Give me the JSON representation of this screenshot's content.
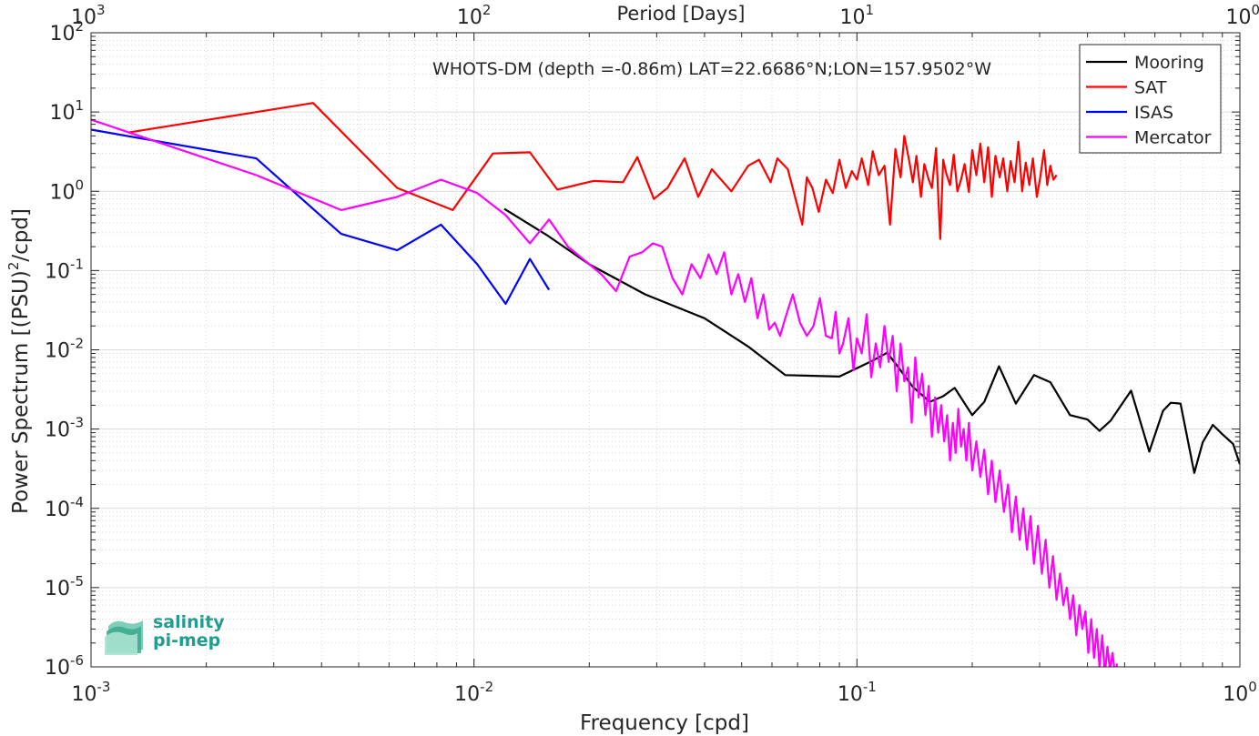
{
  "chart_data": {
    "type": "line",
    "title": "WHOTS-DM (depth =-0.86m) LAT=22.6686°N;LON=157.9502°W",
    "xlabel": "Frequency [cpd]",
    "ylabel": "Power Spectrum [(PSU)²/cpd]",
    "top_xlabel": "Period [Days]",
    "xscale": "log",
    "yscale": "log",
    "xlim": [
      0.001,
      1
    ],
    "ylim": [
      1e-06,
      100
    ],
    "grid": true,
    "legend_position": "top-right",
    "x_ticks": [
      {
        "base": "10",
        "exp": "-3",
        "value": 0.001
      },
      {
        "base": "10",
        "exp": "-2",
        "value": 0.01
      },
      {
        "base": "10",
        "exp": "-1",
        "value": 0.1
      },
      {
        "base": "10",
        "exp": "0",
        "value": 1
      }
    ],
    "y_ticks": [
      {
        "base": "10",
        "exp": "-6",
        "value": 1e-06
      },
      {
        "base": "10",
        "exp": "-5",
        "value": 1e-05
      },
      {
        "base": "10",
        "exp": "-4",
        "value": 0.0001
      },
      {
        "base": "10",
        "exp": "-3",
        "value": 0.001
      },
      {
        "base": "10",
        "exp": "-2",
        "value": 0.01
      },
      {
        "base": "10",
        "exp": "-1",
        "value": 0.1
      },
      {
        "base": "10",
        "exp": "0",
        "value": 1
      },
      {
        "base": "10",
        "exp": "1",
        "value": 10
      },
      {
        "base": "10",
        "exp": "2",
        "value": 100
      }
    ],
    "top_ticks": [
      {
        "base": "10",
        "exp": "3",
        "period": 1000
      },
      {
        "base": "10",
        "exp": "2",
        "period": 100
      },
      {
        "base": "10",
        "exp": "1",
        "period": 10
      },
      {
        "base": "10",
        "exp": "0",
        "period": 1
      }
    ],
    "series": [
      {
        "name": "Mooring",
        "color": "#000000",
        "x": [
          0.012,
          0.0155,
          0.02,
          0.028,
          0.04,
          0.052,
          0.065,
          0.09,
          0.11,
          0.12,
          0.13,
          0.14,
          0.155,
          0.168,
          0.18,
          0.2,
          0.215,
          0.235,
          0.26,
          0.29,
          0.32,
          0.36,
          0.4,
          0.43,
          0.46,
          0.52,
          0.58,
          0.63,
          0.66,
          0.7,
          0.76,
          0.8,
          0.85,
          0.9,
          0.96,
          1.0
        ],
        "y": [
          0.6,
          0.28,
          0.12,
          0.05,
          0.025,
          0.011,
          0.0048,
          0.0046,
          0.0073,
          0.0092,
          0.0055,
          0.0034,
          0.0022,
          0.0026,
          0.0033,
          0.0015,
          0.0022,
          0.0062,
          0.0021,
          0.0048,
          0.0039,
          0.0015,
          0.00132,
          0.00095,
          0.00128,
          0.00305,
          0.00052,
          0.0017,
          0.00215,
          0.0021,
          0.00028,
          0.00068,
          0.00113,
          0.00086,
          0.00065,
          0.00036
        ]
      },
      {
        "name": "SAT",
        "color": "#ff0000",
        "x": [
          0.00125,
          0.0038,
          0.0063,
          0.0088,
          0.0112,
          0.014,
          0.0165,
          0.0205,
          0.0245,
          0.0267,
          0.0295,
          0.032,
          0.0355,
          0.0385,
          0.0418,
          0.047,
          0.052,
          0.0555,
          0.0595,
          0.062,
          0.066,
          0.072,
          0.074,
          0.0765,
          0.0795,
          0.083,
          0.0865,
          0.09,
          0.0935,
          0.097,
          0.1,
          0.103,
          0.107,
          0.11,
          0.114,
          0.118,
          0.122,
          0.126,
          0.13,
          0.133,
          0.137,
          0.14,
          0.143,
          0.147,
          0.15,
          0.154,
          0.157,
          0.161,
          0.165,
          0.168,
          0.171,
          0.175,
          0.179,
          0.183,
          0.187,
          0.191,
          0.196,
          0.2,
          0.205,
          0.21,
          0.215,
          0.22,
          0.225,
          0.23,
          0.236,
          0.241,
          0.247,
          0.252,
          0.258,
          0.264,
          0.27,
          0.276,
          0.282,
          0.288,
          0.295,
          0.301,
          0.308,
          0.314,
          0.32,
          0.326,
          0.332
        ],
        "y": [
          5.5,
          13,
          1.1,
          0.58,
          3.0,
          3.1,
          1.05,
          1.35,
          1.3,
          2.7,
          0.8,
          1.1,
          2.6,
          0.85,
          1.9,
          1.0,
          2.1,
          2.5,
          1.3,
          2.6,
          1.9,
          0.38,
          1.5,
          1.1,
          0.55,
          1.4,
          0.95,
          2.5,
          1.1,
          1.8,
          1.4,
          2.6,
          1.2,
          3.2,
          1.6,
          2.1,
          0.38,
          3.4,
          1.5,
          5.0,
          2.4,
          1.3,
          2.8,
          0.85,
          2.2,
          1.4,
          1.1,
          3.5,
          0.25,
          2.5,
          1.7,
          1.2,
          2.9,
          1.0,
          1.4,
          2.2,
          0.98,
          3.3,
          1.6,
          4.0,
          1.3,
          3.6,
          0.85,
          2.8,
          1.5,
          2.6,
          1.0,
          2.4,
          1.3,
          4.2,
          1.0,
          2.3,
          1.2,
          2.6,
          0.85,
          1.5,
          3.3,
          1.2,
          2.1,
          1.4,
          1.6
        ]
      },
      {
        "name": "ISAS",
        "color": "#0000ff",
        "x": [
          0.001,
          0.0027,
          0.0045,
          0.0063,
          0.0082,
          0.0102,
          0.0121,
          0.014,
          0.0157
        ],
        "y": [
          6.0,
          2.6,
          0.29,
          0.18,
          0.38,
          0.12,
          0.038,
          0.14,
          0.057
        ]
      },
      {
        "name": "Mercator",
        "color": "#ff00ff",
        "x": [
          0.001,
          0.0027,
          0.0045,
          0.0063,
          0.0082,
          0.0102,
          0.0121,
          0.014,
          0.0157,
          0.0176,
          0.0196,
          0.0215,
          0.0235,
          0.0255,
          0.0275,
          0.0293,
          0.031,
          0.033,
          0.035,
          0.037,
          0.039,
          0.041,
          0.043,
          0.045,
          0.047,
          0.049,
          0.051,
          0.053,
          0.055,
          0.057,
          0.059,
          0.061,
          0.063,
          0.065,
          0.068,
          0.071,
          0.074,
          0.077,
          0.08,
          0.083,
          0.086,
          0.088,
          0.09,
          0.092,
          0.095,
          0.098,
          0.1,
          0.103,
          0.106,
          0.109,
          0.112,
          0.115,
          0.118,
          0.121,
          0.124,
          0.127,
          0.13,
          0.133,
          0.136,
          0.139,
          0.142,
          0.145,
          0.148,
          0.151,
          0.154,
          0.157,
          0.16,
          0.163,
          0.166,
          0.169,
          0.172,
          0.175,
          0.178,
          0.181,
          0.184,
          0.187,
          0.19,
          0.193,
          0.196,
          0.2,
          0.205,
          0.21,
          0.215,
          0.22,
          0.225,
          0.23,
          0.236,
          0.242,
          0.248,
          0.254,
          0.26,
          0.266,
          0.272,
          0.278,
          0.284,
          0.29,
          0.297,
          0.304,
          0.311,
          0.318,
          0.325,
          0.332,
          0.339,
          0.346,
          0.353,
          0.36,
          0.367,
          0.374,
          0.381,
          0.388,
          0.395,
          0.402,
          0.409,
          0.416,
          0.423,
          0.43,
          0.437,
          0.444,
          0.451,
          0.458,
          0.465,
          0.472,
          0.478
        ],
        "y": [
          8.0,
          1.6,
          0.58,
          0.85,
          1.4,
          0.95,
          0.5,
          0.22,
          0.44,
          0.2,
          0.13,
          0.09,
          0.055,
          0.15,
          0.17,
          0.22,
          0.2,
          0.08,
          0.05,
          0.12,
          0.08,
          0.16,
          0.09,
          0.17,
          0.05,
          0.09,
          0.04,
          0.08,
          0.025,
          0.05,
          0.018,
          0.022,
          0.015,
          0.025,
          0.05,
          0.022,
          0.015,
          0.02,
          0.045,
          0.015,
          0.014,
          0.03,
          0.009,
          0.012,
          0.025,
          0.0055,
          0.014,
          0.009,
          0.028,
          0.0045,
          0.012,
          0.006,
          0.02,
          0.007,
          0.015,
          0.003,
          0.012,
          0.004,
          0.006,
          0.0012,
          0.008,
          0.0025,
          0.005,
          0.0015,
          0.0035,
          0.0008,
          0.0025,
          0.0009,
          0.002,
          0.0007,
          0.0015,
          0.0004,
          0.0012,
          0.0005,
          0.0018,
          0.0006,
          0.001,
          0.0004,
          0.0012,
          0.0003,
          0.0007,
          0.00025,
          0.00055,
          0.00015,
          0.0004,
          0.00012,
          0.0003,
          9e-05,
          0.0002,
          5e-05,
          0.00014,
          4e-05,
          0.0001,
          3e-05,
          8e-05,
          2e-05,
          6e-05,
          1.5e-05,
          4e-05,
          1e-05,
          2.5e-05,
          7e-06,
          1.5e-05,
          6e-06,
          1e-05,
          4e-06,
          8e-06,
          2.5e-06,
          6e-06,
          3e-06,
          5e-06,
          1.5e-06,
          4e-06,
          1.3e-06,
          3e-06,
          1e-06,
          2.5e-06,
          8e-07,
          1.8e-06,
          9e-07,
          1.5e-06,
          8e-07,
          1.1e-06
        ]
      }
    ]
  },
  "logo": {
    "line1": "salinity",
    "line2": "pi-mep"
  }
}
